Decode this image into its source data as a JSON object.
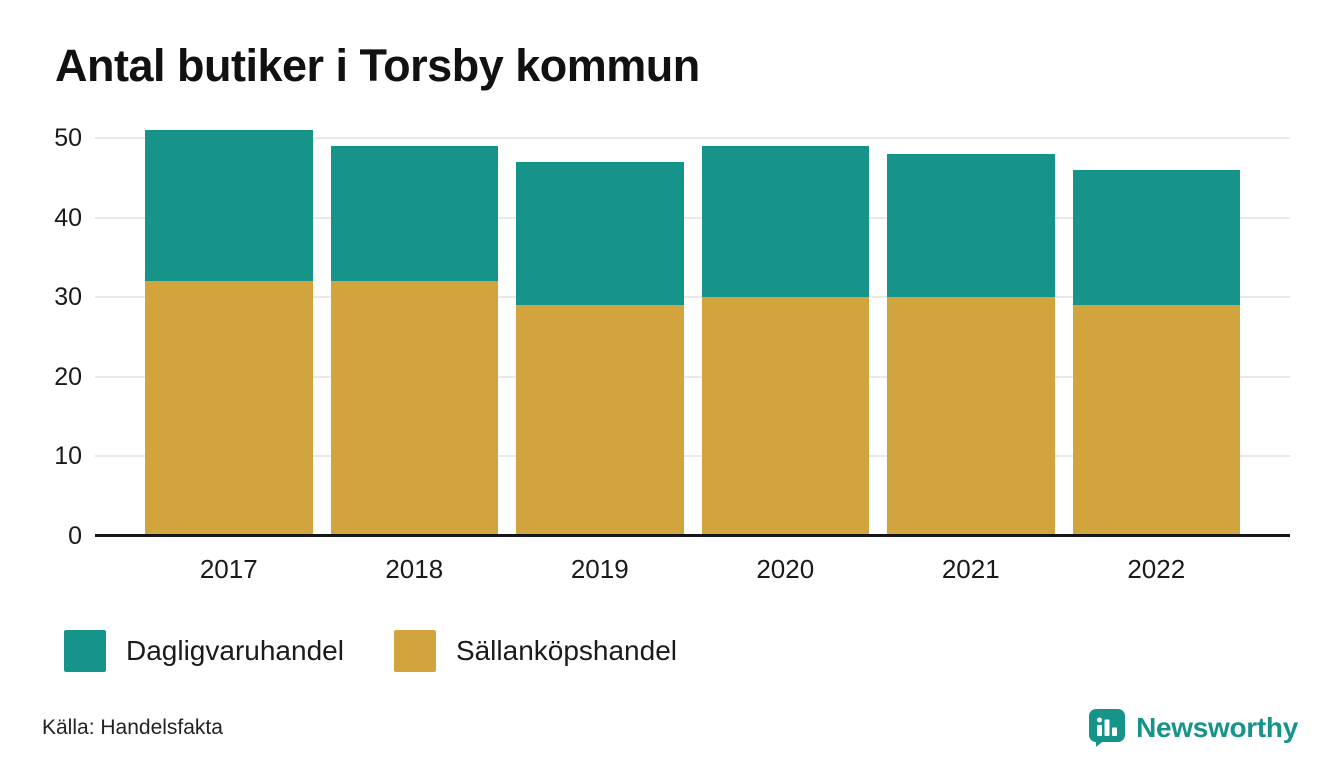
{
  "title": "Antal butiker i Torsby kommun",
  "chart_data": {
    "type": "bar",
    "stacked": true,
    "title": "Antal butiker i Torsby kommun",
    "xlabel": "",
    "ylabel": "",
    "categories": [
      "2017",
      "2018",
      "2019",
      "2020",
      "2021",
      "2022"
    ],
    "series": [
      {
        "name": "Sällanköpshandel",
        "color": "#d2a43e",
        "values": [
          32,
          32,
          29,
          30,
          30,
          29
        ]
      },
      {
        "name": "Dagligvaruhandel",
        "color": "#17948a",
        "values": [
          19,
          17,
          18,
          19,
          18,
          17
        ]
      }
    ],
    "stack_totals": [
      51,
      49,
      47,
      49,
      48,
      46
    ],
    "ylim": [
      0,
      50
    ],
    "yticks": [
      0,
      10,
      20,
      30,
      40,
      50
    ],
    "grid": true,
    "legend_position": "bottom"
  },
  "legend": {
    "items": [
      {
        "label": "Dagligvaruhandel",
        "color": "#17948a"
      },
      {
        "label": "Sällanköpshandel",
        "color": "#d2a43e"
      }
    ]
  },
  "footer": {
    "source": "Källa: Handelsfakta",
    "brand": {
      "name": "Newsworthy",
      "color": "#17948a",
      "icon": "bar-chart-bubble-icon"
    }
  }
}
